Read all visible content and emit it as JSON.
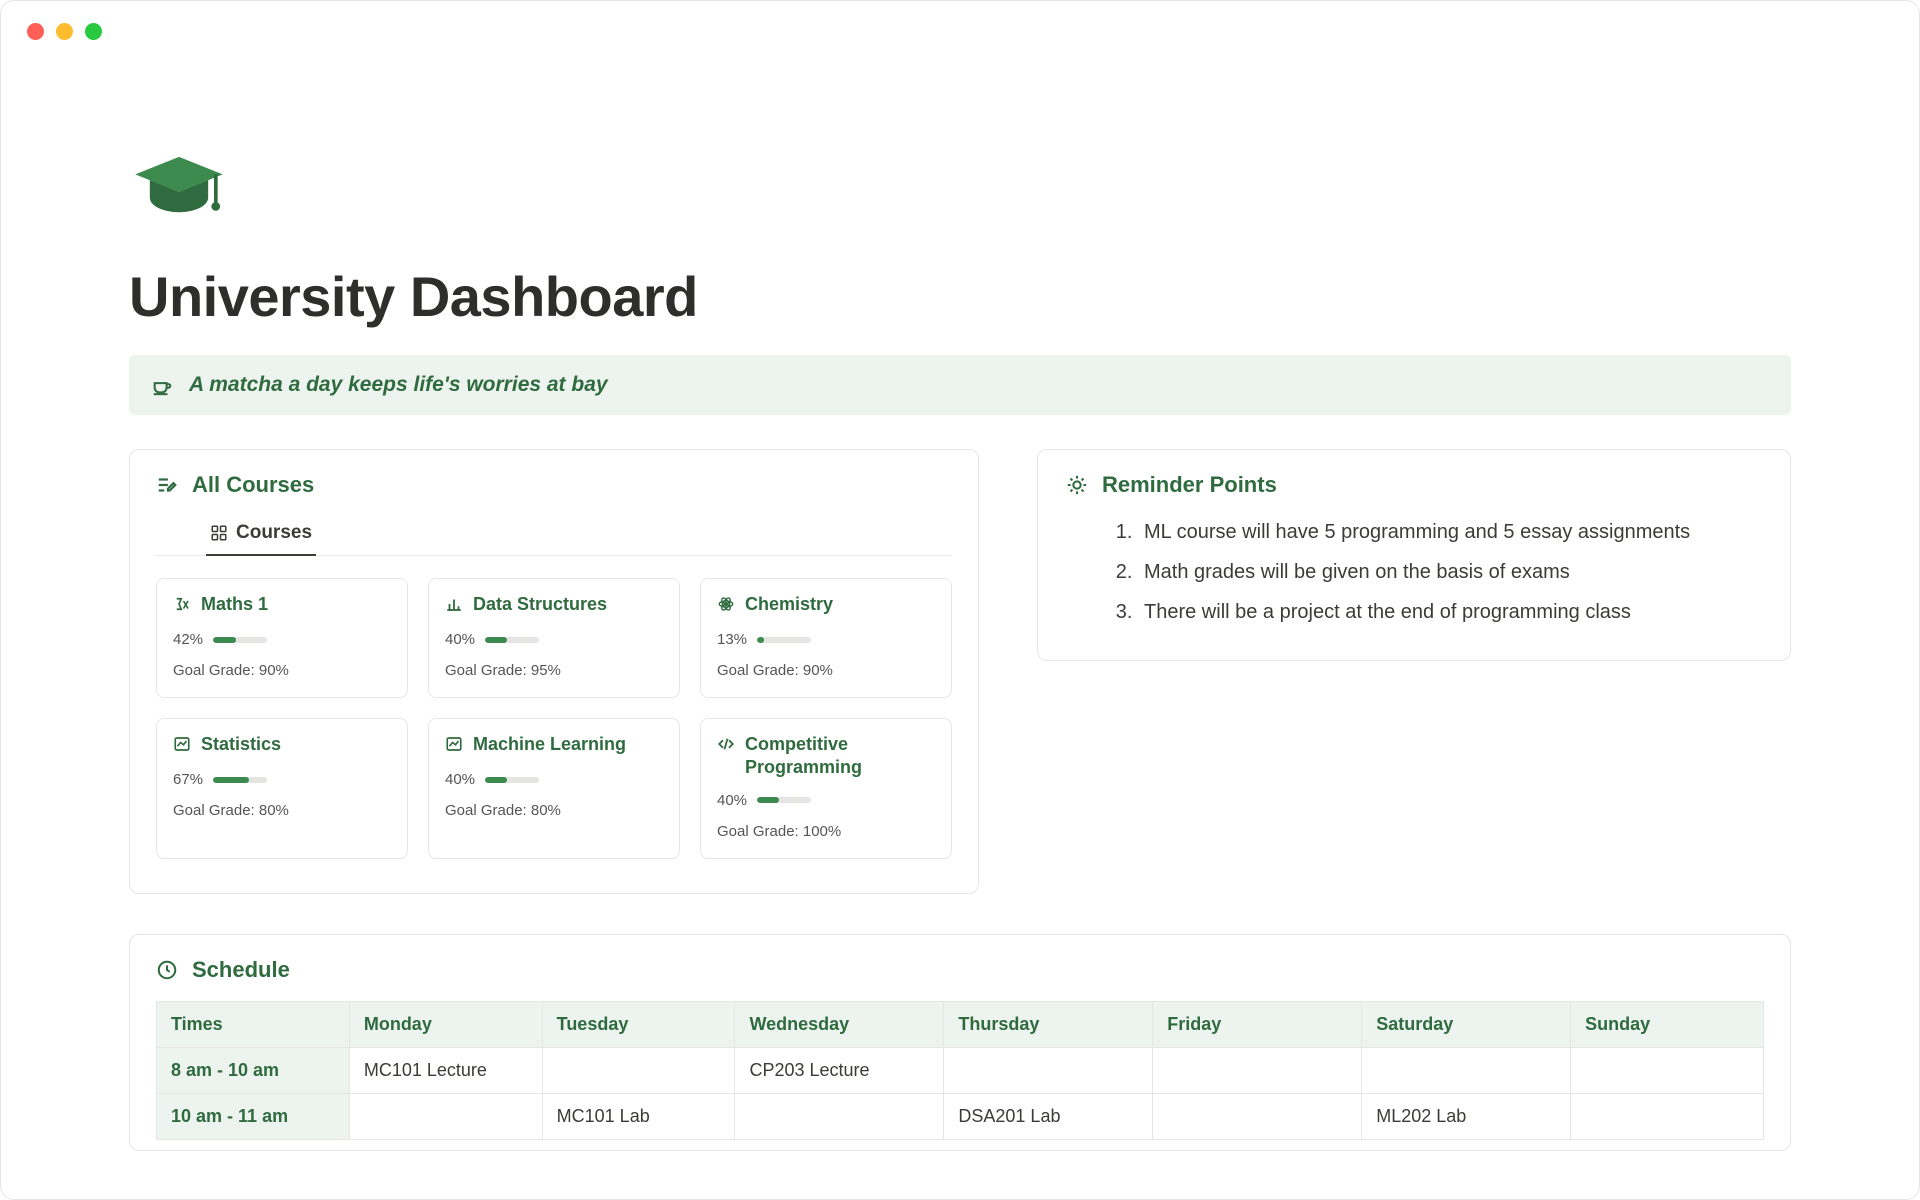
{
  "colors": {
    "accent": "#2f6b3f",
    "accent_fill": "#3d8a4e",
    "banner_bg": "#edf3ee",
    "border": "#e6e6e4",
    "text": "#37352f",
    "muted": "#555555",
    "bar_bg": "#e4e4e2",
    "traffic_red": "#ff5f57",
    "traffic_yellow": "#febc2e",
    "traffic_green": "#28c840"
  },
  "page_title": "University Dashboard",
  "quote_text": "A matcha a day keeps life's worries at bay",
  "courses_panel": {
    "title": "All Courses",
    "tab_label": "Courses",
    "goal_prefix": "Goal Grade: ",
    "items": [
      {
        "name": "Maths 1",
        "icon": "math-icon",
        "progress_pct": 42,
        "goal_pct": 90
      },
      {
        "name": "Data Structures",
        "icon": "barchart-icon",
        "progress_pct": 40,
        "goal_pct": 95
      },
      {
        "name": "Chemistry",
        "icon": "atom-icon",
        "progress_pct": 13,
        "goal_pct": 90
      },
      {
        "name": "Statistics",
        "icon": "linechart-icon",
        "progress_pct": 67,
        "goal_pct": 80
      },
      {
        "name": "Machine Learning",
        "icon": "linechart-icon",
        "progress_pct": 40,
        "goal_pct": 80
      },
      {
        "name": "Competitive Programming",
        "icon": "code-icon",
        "progress_pct": 40,
        "goal_pct": 100
      }
    ]
  },
  "reminders_panel": {
    "title": "Reminder Points",
    "items": [
      "ML course will have 5 programming and 5 essay assignments",
      "Math grades will be given on the basis of exams",
      "There will be a project at the end of programming class"
    ]
  },
  "schedule_panel": {
    "title": "Schedule",
    "columns": [
      "Times",
      "Monday",
      "Tuesday",
      "Wednesday",
      "Thursday",
      "Friday",
      "Saturday",
      "Sunday"
    ],
    "col_widths_pct": [
      12,
      12,
      12,
      13,
      13,
      13,
      13,
      12
    ],
    "rows": [
      {
        "time": "8 am - 10 am",
        "cells": [
          "MC101 Lecture",
          "",
          "CP203 Lecture",
          "",
          "",
          "",
          ""
        ]
      },
      {
        "time": "10 am - 11 am",
        "cells": [
          "",
          "MC101 Lab",
          "",
          "DSA201 Lab",
          "",
          "ML202 Lab",
          ""
        ]
      }
    ]
  }
}
